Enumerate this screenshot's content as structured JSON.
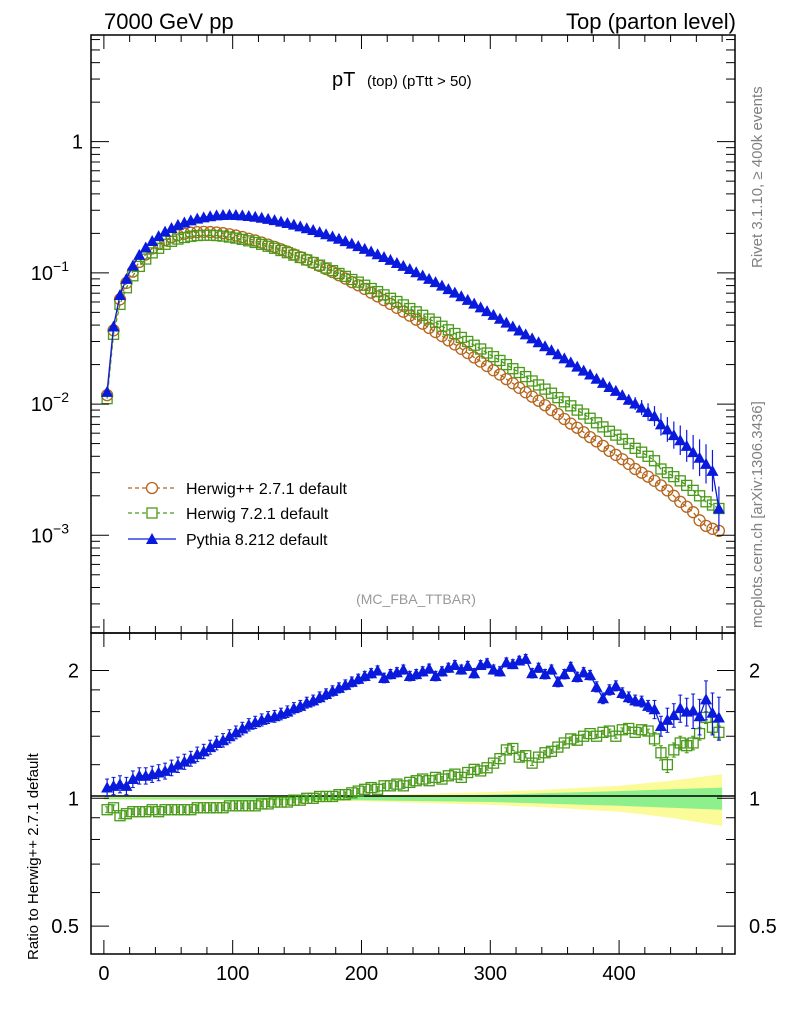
{
  "header": {
    "left": "7000 GeV pp",
    "right": "Top (parton level)"
  },
  "title": {
    "main": "pT",
    "sub": "(top)  (pTtt > 50)"
  },
  "side_labels": {
    "rivet": "Rivet 3.1.10, ≥ 400k events",
    "mcplots": "mcplots.cern.ch [arXiv:1306.3436]"
  },
  "analysis_tag": "(MC_FBA_TTBAR)",
  "ratio_ylabel": "Ratio to Herwig++ 2.7.1 default",
  "colors": {
    "herwigpp": "#b5651d",
    "herwig7": "#4a9a1a",
    "pythia": "#0a1adc",
    "band_inner": "#8df08d",
    "band_outer": "#fbfb99"
  },
  "chart_data": [
    {
      "type": "line",
      "panel": "main",
      "yscale": "log",
      "xlim": [
        -10,
        490
      ],
      "ylim": [
        0.00018,
        6.5
      ],
      "yticks": [
        {
          "value": 0.001,
          "label": "10",
          "exp": "−3"
        },
        {
          "value": 0.01,
          "label": "10",
          "exp": "−2"
        },
        {
          "value": 0.1,
          "label": "10",
          "exp": "−1"
        },
        {
          "value": 1,
          "label": "1",
          "exp": ""
        }
      ],
      "x": [
        2.5,
        7.5,
        12.5,
        17.5,
        22.5,
        27.5,
        32.5,
        37.5,
        42.5,
        47.5,
        52.5,
        57.5,
        62.5,
        67.5,
        72.5,
        77.5,
        82.5,
        87.5,
        92.5,
        97.5,
        102.5,
        107.5,
        112.5,
        117.5,
        122.5,
        127.5,
        132.5,
        137.5,
        142.5,
        147.5,
        152.5,
        157.5,
        162.5,
        167.5,
        172.5,
        177.5,
        182.5,
        187.5,
        192.5,
        197.5,
        202.5,
        207.5,
        212.5,
        217.5,
        222.5,
        227.5,
        232.5,
        237.5,
        242.5,
        247.5,
        252.5,
        257.5,
        262.5,
        267.5,
        272.5,
        277.5,
        282.5,
        287.5,
        292.5,
        297.5,
        302.5,
        307.5,
        312.5,
        317.5,
        322.5,
        327.5,
        332.5,
        337.5,
        342.5,
        347.5,
        352.5,
        357.5,
        362.5,
        367.5,
        372.5,
        377.5,
        382.5,
        387.5,
        392.5,
        397.5,
        402.5,
        407.5,
        412.5,
        417.5,
        422.5,
        427.5,
        432.5,
        437.5,
        442.5,
        447.5,
        452.5,
        457.5,
        462.5,
        467.5,
        472.5,
        477.5
      ],
      "series": [
        {
          "name": "Herwig++ 2.7.1 default",
          "marker": "circle",
          "line": "dashed",
          "values": [
            0.0117,
            0.0365,
            0.0629,
            0.0838,
            0.1022,
            0.1213,
            0.1381,
            0.1535,
            0.1664,
            0.1776,
            0.1867,
            0.1938,
            0.1988,
            0.2025,
            0.2045,
            0.2052,
            0.2047,
            0.203,
            0.2007,
            0.197,
            0.1925,
            0.1877,
            0.182,
            0.1766,
            0.1702,
            0.1641,
            0.1578,
            0.1512,
            0.145,
            0.1383,
            0.1317,
            0.1257,
            0.1195,
            0.1131,
            0.107,
            0.1015,
            0.0959,
            0.0905,
            0.085,
            0.0805,
            0.0755,
            0.0706,
            0.0662,
            0.062,
            0.058,
            0.0542,
            0.0506,
            0.0472,
            0.044,
            0.041,
            0.0381,
            0.0354,
            0.033,
            0.0306,
            0.0285,
            0.0264,
            0.0245,
            0.0227,
            0.0211,
            0.0195,
            0.0181,
            0.0168,
            0.0155,
            0.0144,
            0.0133,
            0.0123,
            0.0114,
            0.0106,
            0.0098,
            0.009,
            0.0084,
            0.0077,
            0.0071,
            0.0066,
            0.0061,
            0.0056,
            0.0052,
            0.0048,
            0.0044,
            0.0041,
            0.0038,
            0.0035,
            0.0032,
            0.003,
            0.0028,
            0.0026,
            0.0024,
            0.0022,
            0.002,
            0.0018,
            0.00165,
            0.0015,
            0.0013,
            0.00118,
            0.00112,
            0.00108
          ]
        },
        {
          "name": "Herwig 7.2.1 default",
          "marker": "square",
          "line": "dashed",
          "values": [
            0.011,
            0.034,
            0.0575,
            0.077,
            0.095,
            0.112,
            0.1275,
            0.142,
            0.154,
            0.165,
            0.174,
            0.181,
            0.186,
            0.19,
            0.1925,
            0.1935,
            0.1935,
            0.1925,
            0.1905,
            0.1875,
            0.184,
            0.18,
            0.1755,
            0.1705,
            0.165,
            0.1595,
            0.154,
            0.148,
            0.1425,
            0.1365,
            0.131,
            0.1255,
            0.12,
            0.1145,
            0.109,
            0.104,
            0.099,
            0.094,
            0.089,
            0.085,
            0.0805,
            0.076,
            0.072,
            0.068,
            0.064,
            0.0605,
            0.057,
            0.0535,
            0.0505,
            0.0475,
            0.0445,
            0.042,
            0.0392,
            0.0368,
            0.0345,
            0.0322,
            0.03,
            0.0281,
            0.0263,
            0.0245,
            0.023,
            0.0215,
            0.02,
            0.0186,
            0.0174,
            0.0162,
            0.015,
            0.014,
            0.013,
            0.0121,
            0.0112,
            0.0104,
            0.0097,
            0.009,
            0.0084,
            0.0078,
            0.0072,
            0.0067,
            0.0062,
            0.0058,
            0.0054,
            0.005,
            0.0046,
            0.0043,
            0.004,
            0.0037,
            0.0032,
            0.003,
            0.0028,
            0.0026,
            0.0024,
            0.0022,
            0.002,
            0.0018,
            0.0017,
            0.0016
          ]
        },
        {
          "name": "Pythia 8.212 default",
          "marker": "triangle",
          "line": "solid",
          "values": [
            0.0124,
            0.039,
            0.0678,
            0.09,
            0.1135,
            0.137,
            0.156,
            0.175,
            0.1905,
            0.206,
            0.22,
            0.232,
            0.242,
            0.251,
            0.259,
            0.265,
            0.27,
            0.274,
            0.276,
            0.277,
            0.276,
            0.274,
            0.271,
            0.2675,
            0.263,
            0.258,
            0.2525,
            0.246,
            0.24,
            0.233,
            0.226,
            0.219,
            0.212,
            0.2045,
            0.197,
            0.1895,
            0.182,
            0.1745,
            0.167,
            0.16,
            0.1525,
            0.1455,
            0.1385,
            0.132,
            0.1255,
            0.119,
            0.113,
            0.107,
            0.101,
            0.0955,
            0.09,
            0.085,
            0.08,
            0.0752,
            0.0707,
            0.0663,
            0.0622,
            0.0583,
            0.0546,
            0.0511,
            0.0478,
            0.0447,
            0.0418,
            0.039,
            0.0364,
            0.034,
            0.0317,
            0.0296,
            0.0276,
            0.0257,
            0.024,
            0.0223,
            0.0208,
            0.0193,
            0.018,
            0.0168,
            0.0156,
            0.0145,
            0.0135,
            0.0126,
            0.0117,
            0.0108,
            0.0101,
            0.0094,
            0.0087,
            0.0081,
            0.007,
            0.0064,
            0.0058,
            0.0053,
            0.0048,
            0.0043,
            0.0039,
            0.0035,
            0.0031,
            0.0016
          ]
        }
      ],
      "legend_position": "lower-left"
    },
    {
      "type": "line",
      "panel": "ratio",
      "yscale": "log",
      "xlim": [
        -10,
        490
      ],
      "ylim": [
        0.43,
        2.45
      ],
      "xticks": [
        0,
        100,
        200,
        300,
        400
      ],
      "yticks": [
        {
          "value": 0.5,
          "label": "0.5"
        },
        {
          "value": 1,
          "label": "1"
        },
        {
          "value": 2,
          "label": "2"
        }
      ],
      "x": [
        2.5,
        7.5,
        12.5,
        17.5,
        22.5,
        27.5,
        32.5,
        37.5,
        42.5,
        47.5,
        52.5,
        57.5,
        62.5,
        67.5,
        72.5,
        77.5,
        82.5,
        87.5,
        92.5,
        97.5,
        102.5,
        107.5,
        112.5,
        117.5,
        122.5,
        127.5,
        132.5,
        137.5,
        142.5,
        147.5,
        152.5,
        157.5,
        162.5,
        167.5,
        172.5,
        177.5,
        182.5,
        187.5,
        192.5,
        197.5,
        202.5,
        207.5,
        212.5,
        217.5,
        222.5,
        227.5,
        232.5,
        237.5,
        242.5,
        247.5,
        252.5,
        257.5,
        262.5,
        267.5,
        272.5,
        277.5,
        282.5,
        287.5,
        292.5,
        297.5,
        302.5,
        307.5,
        312.5,
        317.5,
        322.5,
        327.5,
        332.5,
        337.5,
        342.5,
        347.5,
        352.5,
        357.5,
        362.5,
        367.5,
        372.5,
        377.5,
        382.5,
        387.5,
        392.5,
        397.5,
        402.5,
        407.5,
        412.5,
        417.5,
        422.5,
        427.5,
        432.5,
        437.5,
        442.5,
        447.5,
        452.5,
        457.5,
        462.5,
        467.5,
        472.5,
        477.5
      ],
      "reference_line": 1,
      "series": [
        {
          "name": "Herwig 7.2.1 default",
          "marker": "square",
          "values": [
            0.94,
            0.95,
            0.91,
            0.92,
            0.93,
            0.93,
            0.93,
            0.94,
            0.93,
            0.94,
            0.94,
            0.94,
            0.94,
            0.94,
            0.95,
            0.95,
            0.95,
            0.95,
            0.95,
            0.96,
            0.96,
            0.96,
            0.96,
            0.96,
            0.97,
            0.97,
            0.98,
            0.98,
            0.98,
            0.99,
            0.99,
            1.0,
            1.0,
            1.01,
            1.01,
            1.01,
            1.02,
            1.02,
            1.03,
            1.04,
            1.05,
            1.06,
            1.05,
            1.07,
            1.07,
            1.08,
            1.07,
            1.09,
            1.1,
            1.11,
            1.1,
            1.12,
            1.11,
            1.13,
            1.14,
            1.12,
            1.15,
            1.17,
            1.16,
            1.18,
            1.21,
            1.24,
            1.3,
            1.31,
            1.25,
            1.26,
            1.21,
            1.25,
            1.28,
            1.29,
            1.32,
            1.35,
            1.38,
            1.37,
            1.4,
            1.42,
            1.4,
            1.43,
            1.44,
            1.4,
            1.45,
            1.46,
            1.43,
            1.45,
            1.44,
            1.38,
            1.28,
            1.2,
            1.3,
            1.35,
            1.33,
            1.35,
            1.42,
            1.55,
            1.47,
            1.43
          ],
          "errors": [
            0.015,
            0.015,
            0.015,
            0.015,
            0.015,
            0.015,
            0.015,
            0.015,
            0.015,
            0.015,
            0.015,
            0.015,
            0.015,
            0.015,
            0.015,
            0.015,
            0.015,
            0.015,
            0.015,
            0.015,
            0.015,
            0.015,
            0.015,
            0.015,
            0.015,
            0.015,
            0.015,
            0.015,
            0.015,
            0.015,
            0.015,
            0.015,
            0.015,
            0.015,
            0.015,
            0.015,
            0.015,
            0.015,
            0.015,
            0.015,
            0.015,
            0.015,
            0.015,
            0.015,
            0.015,
            0.015,
            0.015,
            0.015,
            0.015,
            0.015,
            0.015,
            0.015,
            0.015,
            0.015,
            0.015,
            0.015,
            0.015,
            0.015,
            0.015,
            0.015,
            0.015,
            0.015,
            0.015,
            0.015,
            0.015,
            0.015,
            0.015,
            0.015,
            0.015,
            0.015,
            0.015,
            0.015,
            0.015,
            0.015,
            0.015,
            0.015,
            0.015,
            0.015,
            0.015,
            0.015,
            0.015,
            0.015,
            0.015,
            0.015,
            0.015,
            0.05,
            0.05,
            0.05,
            0.05,
            0.05,
            0.05,
            0.05,
            0.05,
            0.05,
            0.05,
            0.05
          ]
        },
        {
          "name": "Pythia 8.212 default",
          "marker": "triangle",
          "values": [
            1.06,
            1.07,
            1.08,
            1.07,
            1.11,
            1.13,
            1.13,
            1.14,
            1.15,
            1.16,
            1.18,
            1.2,
            1.22,
            1.24,
            1.27,
            1.29,
            1.32,
            1.35,
            1.37,
            1.4,
            1.43,
            1.46,
            1.49,
            1.51,
            1.53,
            1.55,
            1.56,
            1.58,
            1.6,
            1.63,
            1.65,
            1.68,
            1.7,
            1.73,
            1.76,
            1.79,
            1.82,
            1.85,
            1.88,
            1.91,
            1.94,
            1.97,
            2.0,
            1.92,
            1.96,
            1.98,
            2.01,
            1.94,
            1.96,
            1.99,
            2.02,
            1.94,
            1.99,
            2.03,
            2.06,
            2.01,
            2.05,
            1.97,
            2.06,
            2.08,
            2.01,
            1.99,
            2.09,
            2.07,
            2.11,
            2.13,
            1.97,
            2.03,
            1.96,
            2.01,
            1.88,
            1.96,
            2.04,
            1.93,
            1.98,
            1.95,
            1.83,
            1.72,
            1.8,
            1.84,
            1.77,
            1.73,
            1.7,
            1.69,
            1.65,
            1.62,
            1.48,
            1.53,
            1.57,
            1.63,
            1.6,
            1.61,
            1.56,
            1.71,
            1.59,
            1.55
          ],
          "errors": [
            0.05,
            0.05,
            0.05,
            0.05,
            0.05,
            0.05,
            0.05,
            0.05,
            0.05,
            0.05,
            0.05,
            0.05,
            0.05,
            0.05,
            0.05,
            0.05,
            0.05,
            0.05,
            0.05,
            0.05,
            0.05,
            0.05,
            0.05,
            0.05,
            0.05,
            0.05,
            0.05,
            0.05,
            0.05,
            0.05,
            0.05,
            0.05,
            0.05,
            0.05,
            0.05,
            0.05,
            0.05,
            0.05,
            0.05,
            0.05,
            0.05,
            0.05,
            0.05,
            0.05,
            0.05,
            0.05,
            0.05,
            0.05,
            0.05,
            0.05,
            0.05,
            0.05,
            0.05,
            0.05,
            0.05,
            0.05,
            0.05,
            0.05,
            0.05,
            0.05,
            0.05,
            0.05,
            0.05,
            0.05,
            0.05,
            0.05,
            0.05,
            0.05,
            0.05,
            0.05,
            0.05,
            0.05,
            0.05,
            0.05,
            0.05,
            0.05,
            0.05,
            0.05,
            0.05,
            0.05,
            0.05,
            0.05,
            0.05,
            0.05,
            0.05,
            0.08,
            0.08,
            0.1,
            0.1,
            0.12,
            0.12,
            0.15,
            0.15,
            0.18,
            0.18,
            0.18
          ]
        }
      ],
      "band": {
        "x": [
          0,
          200,
          250,
          300,
          350,
          400,
          440,
          480
        ],
        "inner_half_width": [
          0.005,
          0.01,
          0.015,
          0.02,
          0.03,
          0.04,
          0.05,
          0.06
        ],
        "outer_half_width": [
          0.008,
          0.015,
          0.025,
          0.035,
          0.05,
          0.07,
          0.1,
          0.14
        ]
      }
    }
  ]
}
